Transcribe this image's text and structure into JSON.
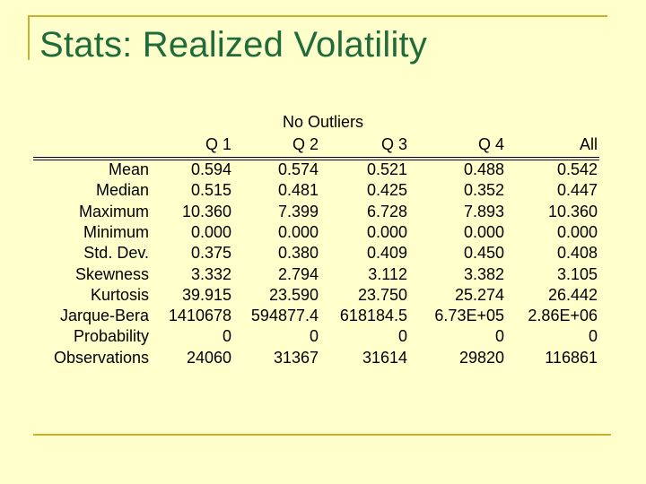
{
  "slide": {
    "title": "Stats: Realized Volatility"
  },
  "table": {
    "group_header": "No Outliers",
    "columns": [
      "Q 1",
      "Q 2",
      "Q 3",
      "Q 4",
      "All"
    ],
    "rows": [
      {
        "label": "Mean",
        "values": [
          "0.594",
          "0.574",
          "0.521",
          "0.488",
          "0.542"
        ]
      },
      {
        "label": "Median",
        "values": [
          "0.515",
          "0.481",
          "0.425",
          "0.352",
          "0.447"
        ]
      },
      {
        "label": "Maximum",
        "values": [
          "10.360",
          "7.399",
          "6.728",
          "7.893",
          "10.360"
        ]
      },
      {
        "label": "Minimum",
        "values": [
          "0.000",
          "0.000",
          "0.000",
          "0.000",
          "0.000"
        ]
      },
      {
        "label": "Std. Dev.",
        "values": [
          "0.375",
          "0.380",
          "0.409",
          "0.450",
          "0.408"
        ]
      },
      {
        "label": "Skewness",
        "values": [
          "3.332",
          "2.794",
          "3.112",
          "3.382",
          "3.105"
        ]
      },
      {
        "label": "Kurtosis",
        "values": [
          "39.915",
          "23.590",
          "23.750",
          "25.274",
          "26.442"
        ]
      },
      {
        "label": "Jarque-Bera",
        "values": [
          "1410678",
          "594877.4",
          "618184.5",
          "6.73E+05",
          "2.86E+06"
        ]
      },
      {
        "label": "Probability",
        "values": [
          "0",
          "0",
          "0",
          "0",
          "0"
        ]
      },
      {
        "label": "Observations",
        "values": [
          "24060",
          "31367",
          "31614",
          "29820",
          "116861"
        ]
      }
    ]
  }
}
